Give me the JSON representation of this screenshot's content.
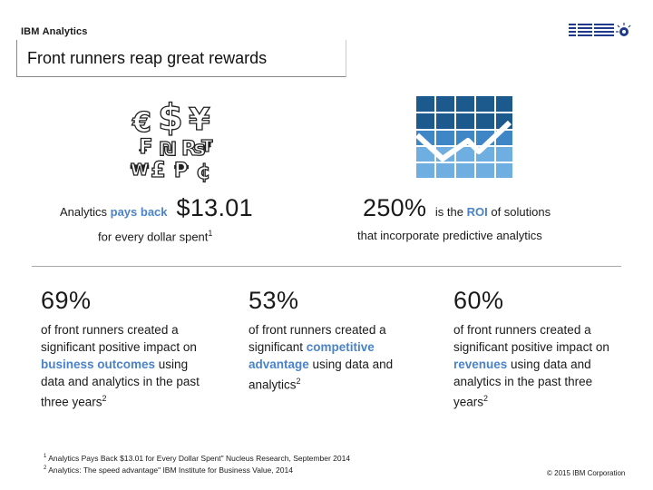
{
  "header": {
    "brand_ibm": "IBM",
    "brand_analytics": "Analytics",
    "title": "Front runners reap great rewards"
  },
  "stats_top": {
    "left": {
      "prefix": "Analytics ",
      "emph": "pays back",
      "value": "$13.01",
      "sub": "for every dollar spent",
      "sub_sup": "1"
    },
    "right": {
      "value": "250%",
      "mid": "is the",
      "emph": "ROI",
      "suffix": "of solutions",
      "sub": "that incorporate predictive analytics"
    }
  },
  "stats_bottom": [
    {
      "pct": "69%",
      "t1": "of front runners created a significant positive impact on ",
      "emph": "business outcomes",
      "t2": " using data and analytics in the past three years",
      "sup": "2"
    },
    {
      "pct": "53%",
      "t1": "of front runners created a significant ",
      "emph": "competitive advantage",
      "t2": " using data and analytics",
      "sup": "2"
    },
    {
      "pct": "60%",
      "t1": "of front runners created a significant positive impact on ",
      "emph": "revenues",
      "t2": " using data and analytics in the past three years",
      "sup": "2"
    }
  ],
  "footnotes": [
    {
      "num": "1",
      "text": "Analytics Pays Back $13.01 for Every Dollar Spent\" Nucleus Research, September 2014"
    },
    {
      "num": "2",
      "text": "Analytics: The speed advantage\" IBM Institute for Business Value, 2014"
    }
  ],
  "copyright": "© 2015 IBM Corporation",
  "colors": {
    "accent": "#4a83c9",
    "tile_dark": "#1c5a8e",
    "tile_light": "#6faee0"
  },
  "icons": [
    "ibm-logo-icon",
    "currency-symbols-icon",
    "growth-chart-icon"
  ]
}
